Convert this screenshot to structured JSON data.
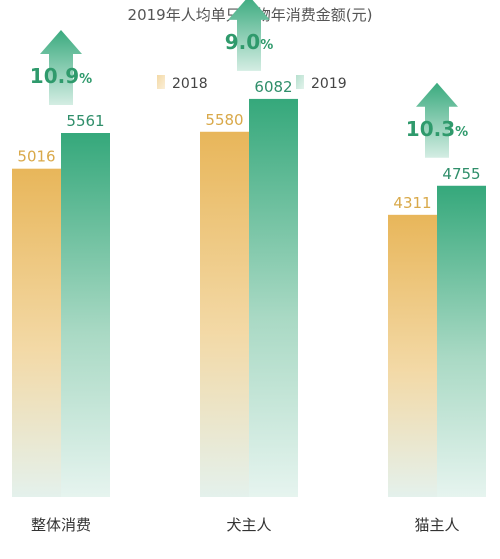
{
  "chart_data": {
    "type": "bar",
    "title": "2019年人均单只宠物年消费金额(元)",
    "categories": [
      "整体消费",
      "犬主人",
      "猫主人"
    ],
    "series": [
      {
        "name": "2018",
        "values": [
          5016,
          5580,
          4311
        ]
      },
      {
        "name": "2019",
        "values": [
          5561,
          6082,
          4755
        ]
      }
    ],
    "growth": [
      {
        "value": "10.9",
        "unit": "%"
      },
      {
        "value": "9.0",
        "unit": "%"
      },
      {
        "value": "10.3",
        "unit": "%"
      }
    ],
    "legend_position": "top",
    "grid": false,
    "ylim": [
      0,
      6600
    ],
    "colors": {
      "series_2018": "#e9b85c",
      "series_2019": "#3aaa7e",
      "arrow": "#3aaa7e",
      "value_2018": "#d9a94a",
      "value_2019": "#2f8e6a",
      "growth_text": "#2f9a6c"
    }
  }
}
